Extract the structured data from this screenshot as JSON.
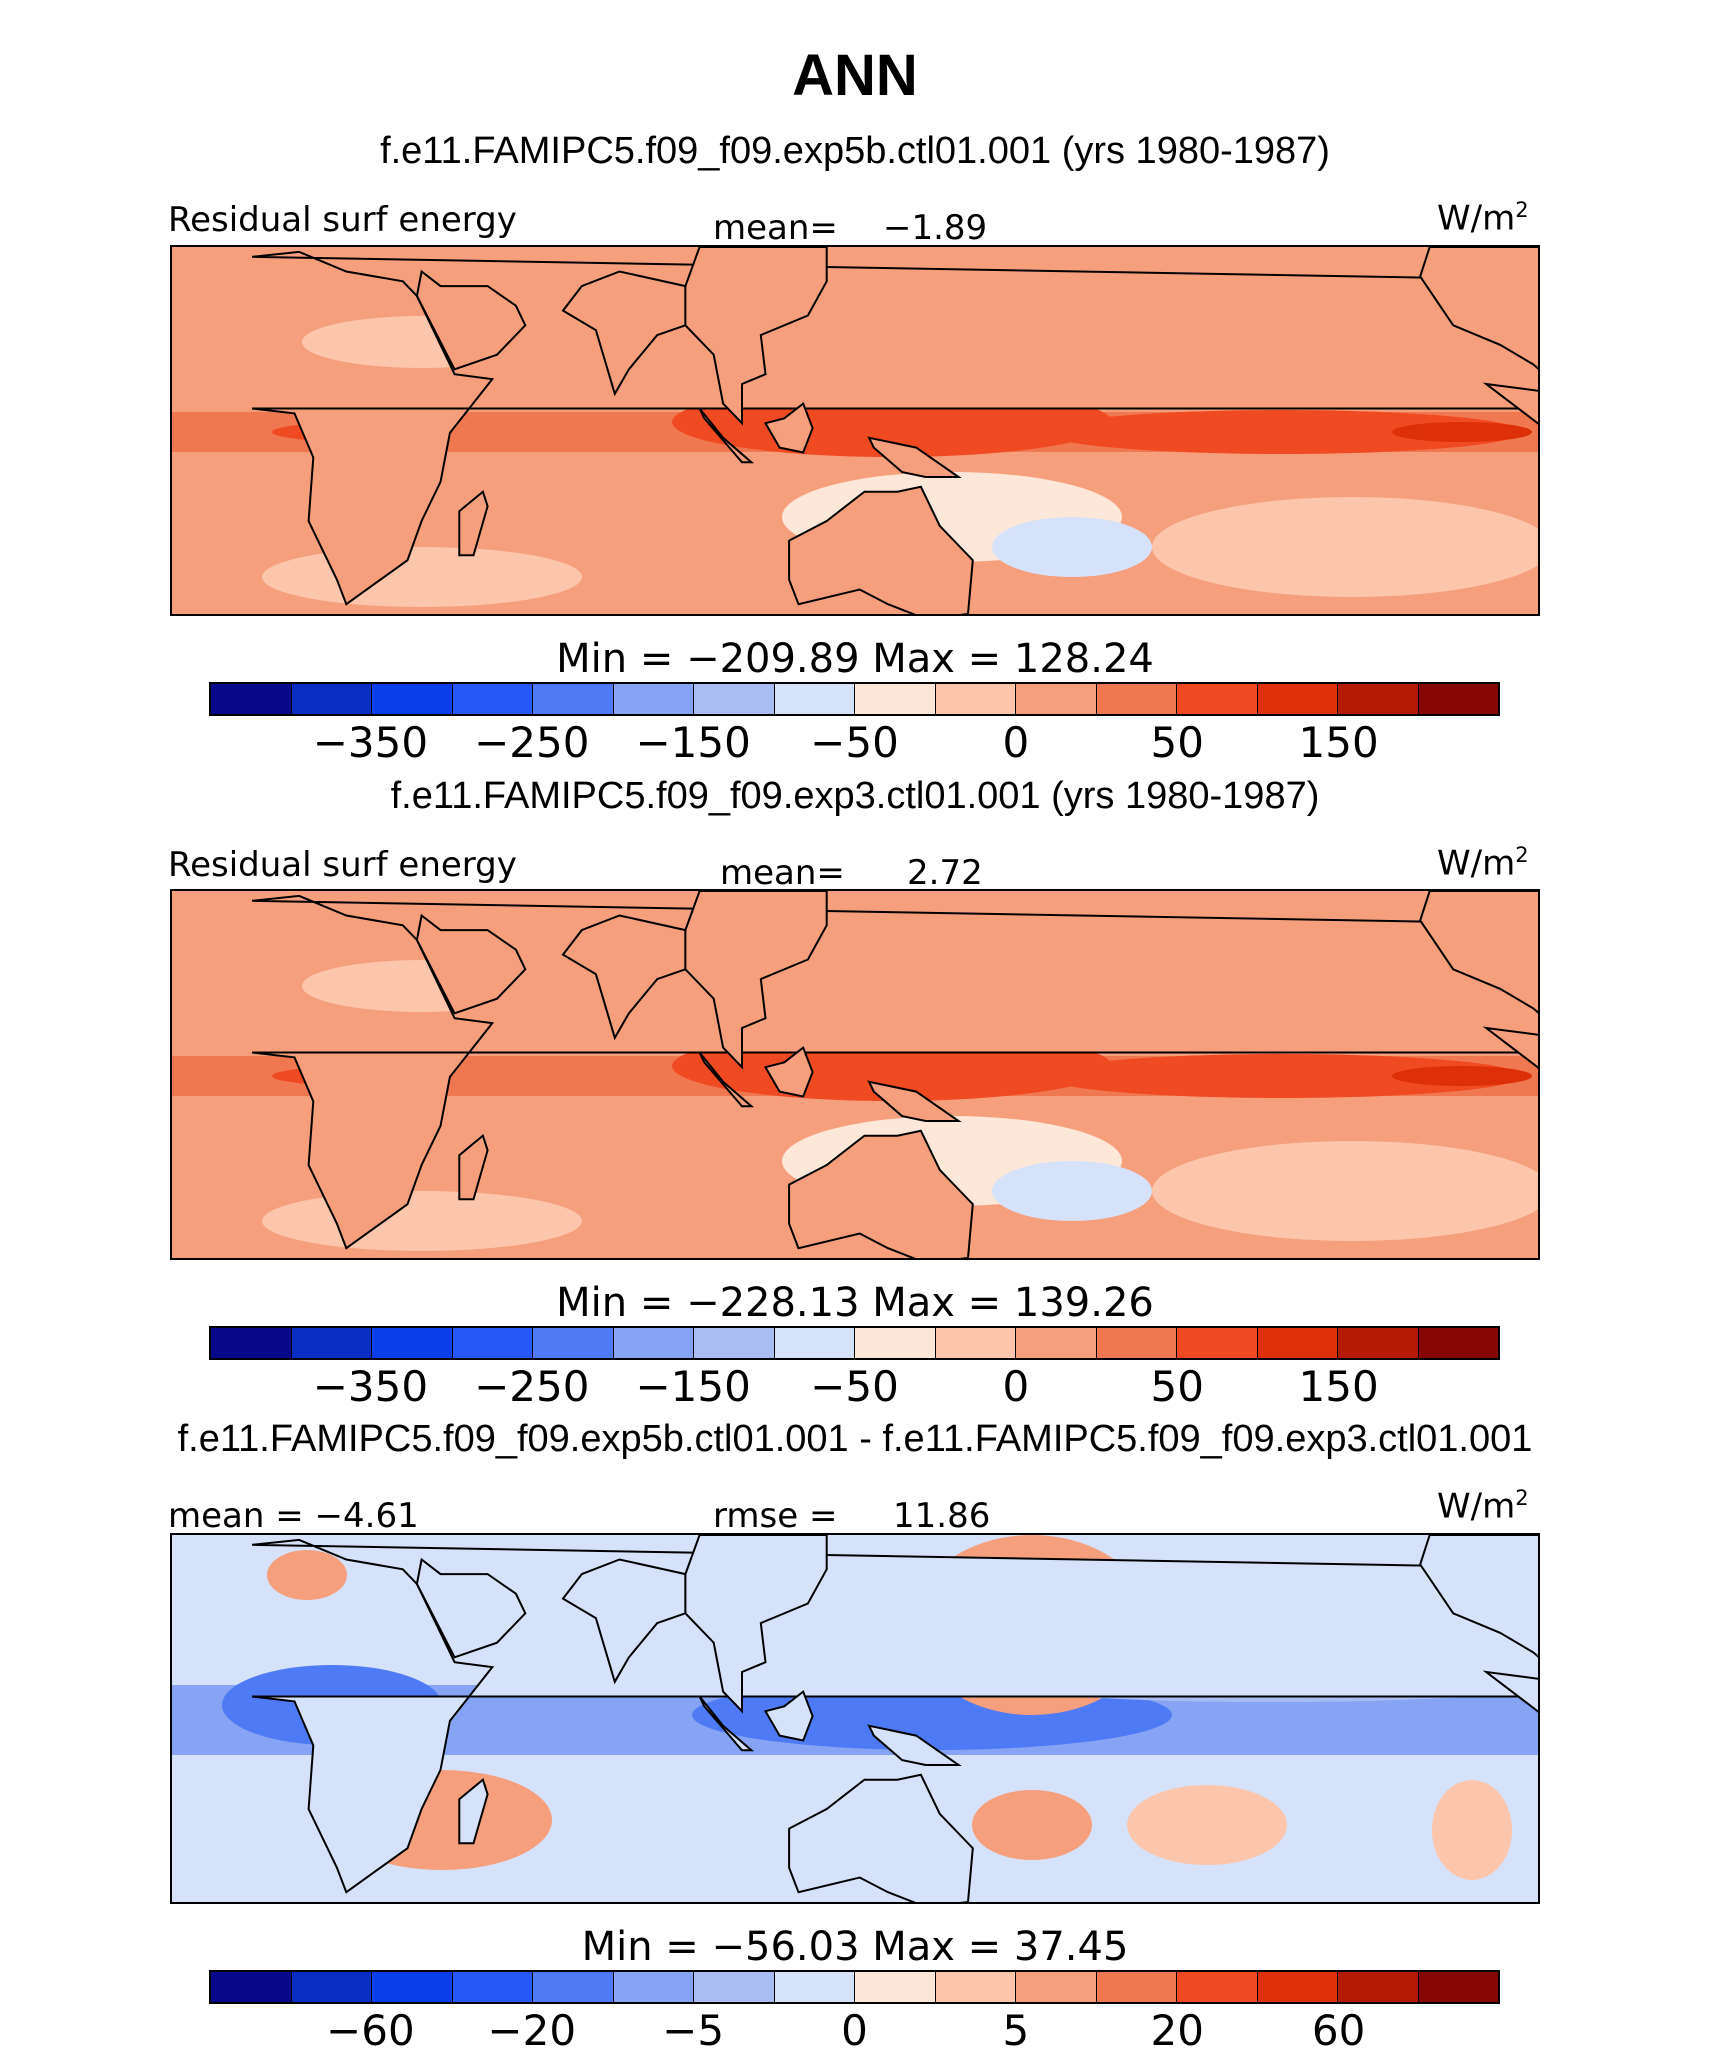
{
  "title": "ANN",
  "colors": [
    "#08088a",
    "#0a2ec4",
    "#0a3ee8",
    "#2558f5",
    "#4f7af5",
    "#86a4f3",
    "#a9bdf2",
    "#d6e2fa",
    "#fde7d8",
    "#fbc6ab",
    "#f69f7d",
    "#f07850",
    "#ef4a22",
    "#dd3008",
    "#b51a06",
    "#860705"
  ],
  "panels": [
    {
      "case_title": "f.e11.FAMIPC5.f09_f09.exp5b.ctl01.001 (yrs 1980-1987)",
      "left_label": "Residual surf energy",
      "stat_label": "mean=",
      "stat_value": "−1.89",
      "units": "W/m",
      "units_sup": "2",
      "minmax": "Min  =  −209.89  Max  =  128.24",
      "ticks": [
        "−350",
        "−250",
        "−150",
        "−50",
        "0",
        "50",
        "150"
      ]
    },
    {
      "case_title": "f.e11.FAMIPC5.f09_f09.exp3.ctl01.001 (yrs 1980-1987)",
      "left_label": "Residual surf energy",
      "stat_label": "mean=",
      "stat_value": "2.72",
      "units": "W/m",
      "units_sup": "2",
      "minmax": "Min  =  −228.13  Max  =  139.26",
      "ticks": [
        "−350",
        "−250",
        "−150",
        "−50",
        "0",
        "50",
        "150"
      ]
    },
    {
      "case_title": "f.e11.FAMIPC5.f09_f09.exp5b.ctl01.001 - f.e11.FAMIPC5.f09_f09.exp3.ctl01.001",
      "left_label": "mean  =   −4.61",
      "stat_label": "rmse  =",
      "stat_value": "11.86",
      "units": "W/m",
      "units_sup": "2",
      "minmax": "Min  =  −56.03  Max  =   37.45",
      "ticks": [
        "−60",
        "−20",
        "−5",
        "0",
        "5",
        "20",
        "60"
      ]
    }
  ],
  "chart_data": [
    {
      "type": "heatmap",
      "title": "ANN",
      "subtitle": "f.e11.FAMIPC5.f09_f09.exp5b.ctl01.001 (yrs 1980-1987)",
      "variable": "Residual surf energy",
      "units": "W/m2",
      "mean": -1.89,
      "min": -209.89,
      "max": 128.24,
      "colorbar_ticks": [
        -350,
        -250,
        -150,
        -50,
        0,
        50,
        150
      ]
    },
    {
      "type": "heatmap",
      "subtitle": "f.e11.FAMIPC5.f09_f09.exp3.ctl01.001 (yrs 1980-1987)",
      "variable": "Residual surf energy",
      "units": "W/m2",
      "mean": 2.72,
      "min": -228.13,
      "max": 139.26,
      "colorbar_ticks": [
        -350,
        -250,
        -150,
        -50,
        0,
        50,
        150
      ]
    },
    {
      "type": "heatmap",
      "subtitle": "f.e11.FAMIPC5.f09_f09.exp5b.ctl01.001 - f.e11.FAMIPC5.f09_f09.exp3.ctl01.001",
      "units": "W/m2",
      "mean": -4.61,
      "rmse": 11.86,
      "min": -56.03,
      "max": 37.45,
      "colorbar_ticks": [
        -60,
        -20,
        -5,
        0,
        5,
        20,
        60
      ]
    }
  ]
}
